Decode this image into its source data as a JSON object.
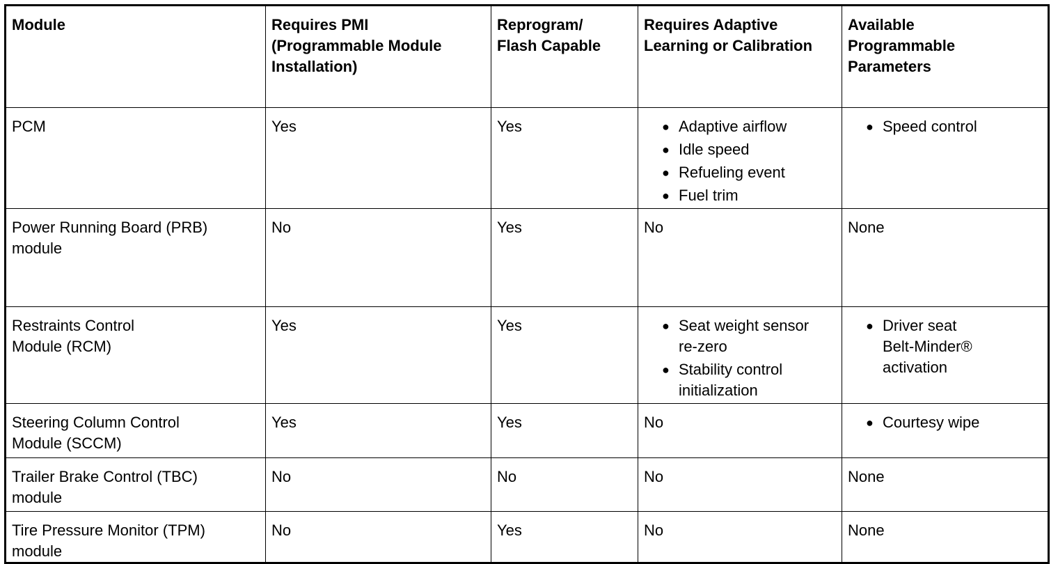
{
  "table": {
    "header": [
      [
        "Module"
      ],
      [
        "Requires PMI",
        "(Programmable Module",
        "Installation)"
      ],
      [
        "Reprogram/",
        "Flash Capable"
      ],
      [
        "Requires Adaptive",
        "Learning or Calibration"
      ],
      [
        "Available",
        "Programmable",
        "Parameters"
      ]
    ],
    "rows": [
      [
        [
          "PCM"
        ],
        [
          "Yes"
        ],
        [
          "Yes"
        ],
        {
          "bullets": [
            [
              "Adaptive airflow"
            ],
            [
              "Idle speed"
            ],
            [
              "Refueling event"
            ],
            [
              "Fuel trim"
            ]
          ]
        },
        {
          "bullets": [
            [
              "Speed control"
            ]
          ]
        }
      ],
      [
        [
          "Power Running Board (PRB)",
          "module"
        ],
        [
          "No"
        ],
        [
          "Yes"
        ],
        [
          "No"
        ],
        [
          "None"
        ]
      ],
      [
        [
          "Restraints Control",
          "Module (RCM)"
        ],
        [
          "Yes"
        ],
        [
          "Yes"
        ],
        {
          "bullets": [
            [
              "Seat weight sensor",
              "re-zero"
            ],
            [
              "Stability control",
              "initialization"
            ]
          ]
        },
        {
          "bullets": [
            [
              "Driver seat",
              "Belt-Minder®",
              "activation"
            ]
          ]
        }
      ],
      [
        [
          "Steering Column Control",
          "Module (SCCM)"
        ],
        [
          "Yes"
        ],
        [
          "Yes"
        ],
        [
          "No"
        ],
        {
          "bullets": [
            [
              "Courtesy wipe"
            ]
          ]
        }
      ],
      [
        [
          "Trailer Brake Control (TBC)",
          "module"
        ],
        [
          "No"
        ],
        [
          "No"
        ],
        [
          "No"
        ],
        [
          "None"
        ]
      ],
      [
        [
          "Tire Pressure Monitor (TPM)",
          "module"
        ],
        [
          "No"
        ],
        [
          "Yes"
        ],
        [
          "No"
        ],
        [
          "None"
        ]
      ]
    ]
  }
}
